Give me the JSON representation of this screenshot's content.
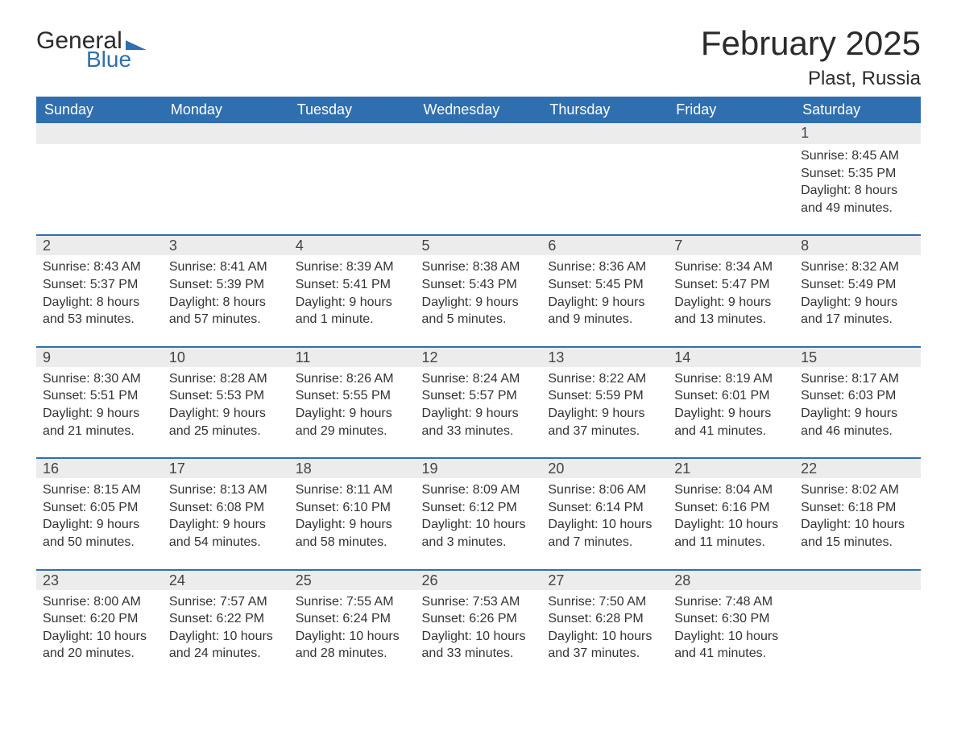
{
  "brand": {
    "part1": "General",
    "part2": "Blue"
  },
  "header": {
    "title": "February 2025",
    "location": "Plast, Russia"
  },
  "colors": {
    "header_bg": "#2f6fb0",
    "header_text": "#ffffff",
    "daynum_bg": "#ececec",
    "rule": "#2f6fb0",
    "body_text": "#333333",
    "page_bg": "#ffffff"
  },
  "typography": {
    "title_fontsize": 42,
    "location_fontsize": 24,
    "dayhead_fontsize": 18,
    "body_fontsize": 16
  },
  "calendar": {
    "day_names": [
      "Sunday",
      "Monday",
      "Tuesday",
      "Wednesday",
      "Thursday",
      "Friday",
      "Saturday"
    ],
    "weeks": [
      [
        null,
        null,
        null,
        null,
        null,
        null,
        {
          "n": "1",
          "sunrise": "8:45 AM",
          "sunset": "5:35 PM",
          "daylight": "8 hours and 49 minutes."
        }
      ],
      [
        {
          "n": "2",
          "sunrise": "8:43 AM",
          "sunset": "5:37 PM",
          "daylight": "8 hours and 53 minutes."
        },
        {
          "n": "3",
          "sunrise": "8:41 AM",
          "sunset": "5:39 PM",
          "daylight": "8 hours and 57 minutes."
        },
        {
          "n": "4",
          "sunrise": "8:39 AM",
          "sunset": "5:41 PM",
          "daylight": "9 hours and 1 minute."
        },
        {
          "n": "5",
          "sunrise": "8:38 AM",
          "sunset": "5:43 PM",
          "daylight": "9 hours and 5 minutes."
        },
        {
          "n": "6",
          "sunrise": "8:36 AM",
          "sunset": "5:45 PM",
          "daylight": "9 hours and 9 minutes."
        },
        {
          "n": "7",
          "sunrise": "8:34 AM",
          "sunset": "5:47 PM",
          "daylight": "9 hours and 13 minutes."
        },
        {
          "n": "8",
          "sunrise": "8:32 AM",
          "sunset": "5:49 PM",
          "daylight": "9 hours and 17 minutes."
        }
      ],
      [
        {
          "n": "9",
          "sunrise": "8:30 AM",
          "sunset": "5:51 PM",
          "daylight": "9 hours and 21 minutes."
        },
        {
          "n": "10",
          "sunrise": "8:28 AM",
          "sunset": "5:53 PM",
          "daylight": "9 hours and 25 minutes."
        },
        {
          "n": "11",
          "sunrise": "8:26 AM",
          "sunset": "5:55 PM",
          "daylight": "9 hours and 29 minutes."
        },
        {
          "n": "12",
          "sunrise": "8:24 AM",
          "sunset": "5:57 PM",
          "daylight": "9 hours and 33 minutes."
        },
        {
          "n": "13",
          "sunrise": "8:22 AM",
          "sunset": "5:59 PM",
          "daylight": "9 hours and 37 minutes."
        },
        {
          "n": "14",
          "sunrise": "8:19 AM",
          "sunset": "6:01 PM",
          "daylight": "9 hours and 41 minutes."
        },
        {
          "n": "15",
          "sunrise": "8:17 AM",
          "sunset": "6:03 PM",
          "daylight": "9 hours and 46 minutes."
        }
      ],
      [
        {
          "n": "16",
          "sunrise": "8:15 AM",
          "sunset": "6:05 PM",
          "daylight": "9 hours and 50 minutes."
        },
        {
          "n": "17",
          "sunrise": "8:13 AM",
          "sunset": "6:08 PM",
          "daylight": "9 hours and 54 minutes."
        },
        {
          "n": "18",
          "sunrise": "8:11 AM",
          "sunset": "6:10 PM",
          "daylight": "9 hours and 58 minutes."
        },
        {
          "n": "19",
          "sunrise": "8:09 AM",
          "sunset": "6:12 PM",
          "daylight": "10 hours and 3 minutes."
        },
        {
          "n": "20",
          "sunrise": "8:06 AM",
          "sunset": "6:14 PM",
          "daylight": "10 hours and 7 minutes."
        },
        {
          "n": "21",
          "sunrise": "8:04 AM",
          "sunset": "6:16 PM",
          "daylight": "10 hours and 11 minutes."
        },
        {
          "n": "22",
          "sunrise": "8:02 AM",
          "sunset": "6:18 PM",
          "daylight": "10 hours and 15 minutes."
        }
      ],
      [
        {
          "n": "23",
          "sunrise": "8:00 AM",
          "sunset": "6:20 PM",
          "daylight": "10 hours and 20 minutes."
        },
        {
          "n": "24",
          "sunrise": "7:57 AM",
          "sunset": "6:22 PM",
          "daylight": "10 hours and 24 minutes."
        },
        {
          "n": "25",
          "sunrise": "7:55 AM",
          "sunset": "6:24 PM",
          "daylight": "10 hours and 28 minutes."
        },
        {
          "n": "26",
          "sunrise": "7:53 AM",
          "sunset": "6:26 PM",
          "daylight": "10 hours and 33 minutes."
        },
        {
          "n": "27",
          "sunrise": "7:50 AM",
          "sunset": "6:28 PM",
          "daylight": "10 hours and 37 minutes."
        },
        {
          "n": "28",
          "sunrise": "7:48 AM",
          "sunset": "6:30 PM",
          "daylight": "10 hours and 41 minutes."
        },
        null
      ]
    ]
  },
  "labels": {
    "sunrise": "Sunrise: ",
    "sunset": "Sunset: ",
    "daylight": "Daylight: "
  }
}
